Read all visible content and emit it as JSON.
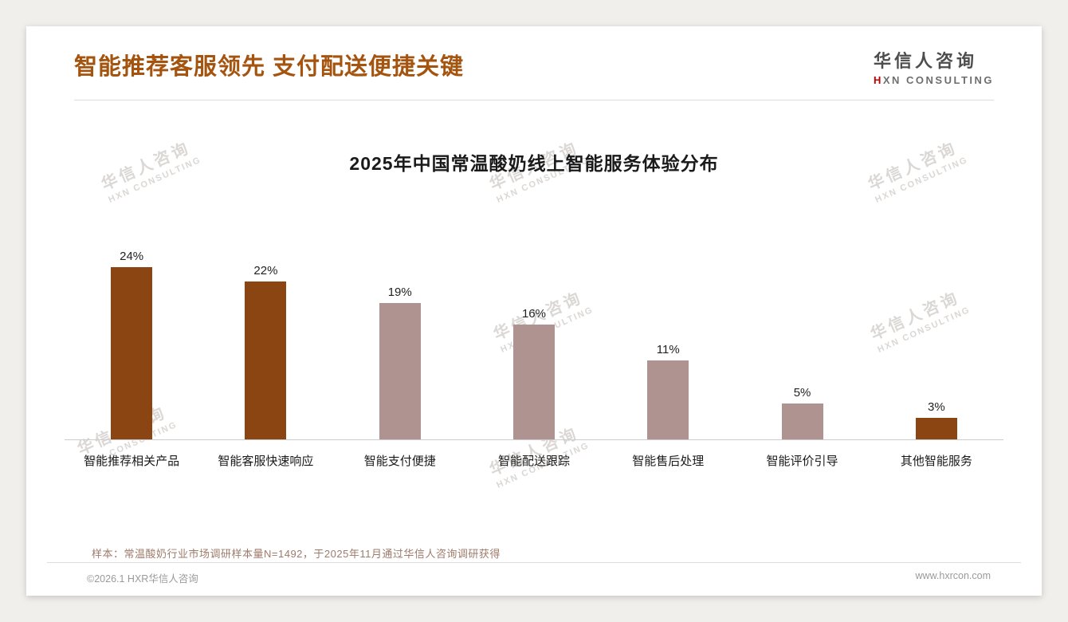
{
  "header": {
    "title": "智能推荐客服领先 支付配送便捷关键",
    "logo_cn": "华信人咨询",
    "logo_en": "HXN CONSULTING"
  },
  "watermark": {
    "cn": "华信人咨询",
    "en": "HXN CONSULTING"
  },
  "chart_data": {
    "type": "bar",
    "title": "2025年中国常温酸奶线上智能服务体验分布",
    "categories": [
      "智能推荐相关产品",
      "智能客服快速响应",
      "智能支付便捷",
      "智能配送跟踪",
      "智能售后处理",
      "智能评价引导",
      "其他智能服务"
    ],
    "values": [
      24,
      22,
      19,
      16,
      11,
      5,
      3
    ],
    "value_labels": [
      "24%",
      "22%",
      "19%",
      "16%",
      "11%",
      "5%",
      "3%"
    ],
    "bar_colors": [
      "#8B4513",
      "#8B4513",
      "#AE9391",
      "#AE9391",
      "#AE9391",
      "#AE9391",
      "#8B4513"
    ],
    "xlabel": "",
    "ylabel": "",
    "ylim": [
      0,
      26
    ],
    "grid": false,
    "legend": "none"
  },
  "note": "样本：常温酸奶行业市场调研样本量N=1492，于2025年11月通过华信人咨询调研获得",
  "footer": {
    "left": "©2026.1 HXR华信人咨询",
    "right": "www.hxrcon.com"
  },
  "colors": {
    "accent_dark": "#8B4513",
    "accent_light": "#AE9391",
    "title_color": "#A4540F",
    "logo_red": "#C00000"
  }
}
